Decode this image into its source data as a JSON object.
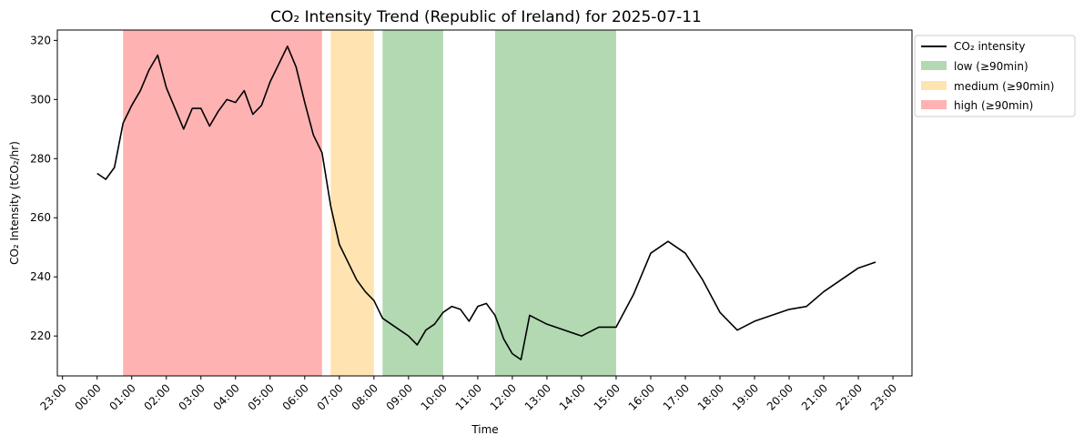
{
  "chart_data": {
    "type": "line",
    "title": "CO₂ Intensity Trend (Republic of Ireland) for 2025-07-11",
    "xlabel": "Time",
    "ylabel": "CO₂ Intensity (tCO₂/hr)",
    "ylim": [
      206.5,
      323.5
    ],
    "xlim": [
      -1.15,
      23.55
    ],
    "y_ticks": [
      220,
      240,
      260,
      280,
      300,
      320
    ],
    "x_ticks": [
      {
        "x": -1,
        "label": "23:00"
      },
      {
        "x": 0,
        "label": "00:00"
      },
      {
        "x": 1,
        "label": "01:00"
      },
      {
        "x": 2,
        "label": "02:00"
      },
      {
        "x": 3,
        "label": "03:00"
      },
      {
        "x": 4,
        "label": "04:00"
      },
      {
        "x": 5,
        "label": "05:00"
      },
      {
        "x": 6,
        "label": "06:00"
      },
      {
        "x": 7,
        "label": "07:00"
      },
      {
        "x": 8,
        "label": "08:00"
      },
      {
        "x": 9,
        "label": "09:00"
      },
      {
        "x": 10,
        "label": "10:00"
      },
      {
        "x": 11,
        "label": "11:00"
      },
      {
        "x": 12,
        "label": "12:00"
      },
      {
        "x": 13,
        "label": "13:00"
      },
      {
        "x": 14,
        "label": "14:00"
      },
      {
        "x": 15,
        "label": "15:00"
      },
      {
        "x": 16,
        "label": "16:00"
      },
      {
        "x": 17,
        "label": "17:00"
      },
      {
        "x": 18,
        "label": "18:00"
      },
      {
        "x": 19,
        "label": "19:00"
      },
      {
        "x": 20,
        "label": "20:00"
      },
      {
        "x": 21,
        "label": "21:00"
      },
      {
        "x": 22,
        "label": "22:00"
      },
      {
        "x": 23,
        "label": "23:00"
      }
    ],
    "series": [
      {
        "name": "CO₂ intensity",
        "color": "#000000",
        "points": [
          [
            0.0,
            275
          ],
          [
            0.25,
            273
          ],
          [
            0.5,
            277
          ],
          [
            0.75,
            292
          ],
          [
            1.0,
            298
          ],
          [
            1.25,
            303
          ],
          [
            1.5,
            310
          ],
          [
            1.75,
            315
          ],
          [
            2.0,
            304
          ],
          [
            2.25,
            297
          ],
          [
            2.5,
            290
          ],
          [
            2.75,
            297
          ],
          [
            3.0,
            297
          ],
          [
            3.25,
            291
          ],
          [
            3.5,
            296
          ],
          [
            3.75,
            300
          ],
          [
            4.0,
            299
          ],
          [
            4.25,
            303
          ],
          [
            4.5,
            295
          ],
          [
            4.75,
            298
          ],
          [
            5.0,
            306
          ],
          [
            5.25,
            312
          ],
          [
            5.5,
            318
          ],
          [
            5.75,
            311
          ],
          [
            6.0,
            299
          ],
          [
            6.25,
            288
          ],
          [
            6.5,
            282
          ],
          [
            6.75,
            264
          ],
          [
            7.0,
            251
          ],
          [
            7.25,
            245
          ],
          [
            7.5,
            239
          ],
          [
            7.75,
            235
          ],
          [
            8.0,
            232
          ],
          [
            8.25,
            226
          ],
          [
            8.5,
            224
          ],
          [
            8.75,
            222
          ],
          [
            9.0,
            220
          ],
          [
            9.25,
            217
          ],
          [
            9.5,
            222
          ],
          [
            9.75,
            224
          ],
          [
            10.0,
            228
          ],
          [
            10.25,
            230
          ],
          [
            10.5,
            229
          ],
          [
            10.75,
            225
          ],
          [
            11.0,
            230
          ],
          [
            11.25,
            231
          ],
          [
            11.5,
            227
          ],
          [
            11.75,
            219
          ],
          [
            12.0,
            214
          ],
          [
            12.25,
            212
          ],
          [
            12.5,
            227
          ],
          [
            13.0,
            224
          ],
          [
            14.0,
            220
          ],
          [
            14.5,
            223
          ],
          [
            15.0,
            223
          ],
          [
            15.5,
            234
          ],
          [
            16.0,
            248
          ],
          [
            16.5,
            252
          ],
          [
            17.0,
            248
          ],
          [
            17.5,
            239
          ],
          [
            18.0,
            228
          ],
          [
            18.5,
            222
          ],
          [
            19.0,
            225
          ],
          [
            20.0,
            229
          ],
          [
            20.5,
            230
          ],
          [
            21.0,
            235
          ],
          [
            22.0,
            243
          ],
          [
            22.5,
            245
          ]
        ]
      }
    ],
    "bands": [
      {
        "level": "high",
        "start": 0.75,
        "end": 6.5,
        "color": "#ff0000"
      },
      {
        "level": "medium",
        "start": 6.75,
        "end": 8.0,
        "color": "#ffa500"
      },
      {
        "level": "low",
        "start": 8.25,
        "end": 10.0,
        "color": "#008000"
      },
      {
        "level": "low",
        "start": 11.5,
        "end": 15.0,
        "color": "#008000"
      }
    ],
    "legend": {
      "placement": "outside-top-right",
      "items": [
        {
          "label": "CO₂ intensity",
          "kind": "line",
          "color": "#000000"
        },
        {
          "label": "low (≥90min)",
          "kind": "patch",
          "color": "#008000"
        },
        {
          "label": "medium (≥90min)",
          "kind": "patch",
          "color": "#ffa500"
        },
        {
          "label": "high (≥90min)",
          "kind": "patch",
          "color": "#ff0000"
        }
      ]
    },
    "band_opacity": 0.3,
    "grid": false
  }
}
